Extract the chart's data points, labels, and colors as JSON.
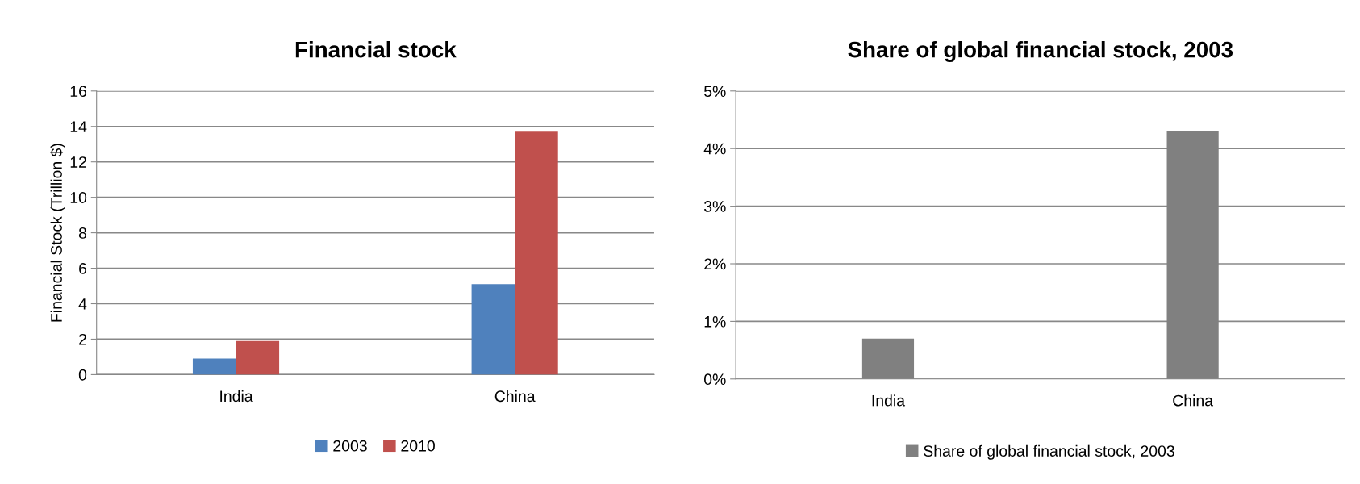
{
  "chart_data": [
    {
      "type": "bar",
      "title": "Financial stock",
      "ylabel": "Financial Stock (Trillion $)",
      "categories": [
        "India",
        "China"
      ],
      "series": [
        {
          "name": "2003",
          "color": "#4f81bd",
          "values": [
            0.9,
            5.1
          ]
        },
        {
          "name": "2010",
          "color": "#c0504d",
          "values": [
            1.9,
            13.7
          ]
        }
      ],
      "ylim": [
        0,
        16
      ],
      "yticks": [
        0,
        2,
        4,
        6,
        8,
        10,
        12,
        14,
        16
      ],
      "grid": "y",
      "legend": "bottom"
    },
    {
      "type": "bar",
      "title": "Share of global financial stock, 2003",
      "categories": [
        "India",
        "China"
      ],
      "series": [
        {
          "name": "Share of global financial stock, 2003",
          "color": "#808080",
          "values": [
            0.7,
            4.3
          ]
        }
      ],
      "ylim": [
        0,
        5
      ],
      "yticks": [
        {
          "value": 0,
          "label": "0%"
        },
        {
          "value": 1,
          "label": "1%"
        },
        {
          "value": 2,
          "label": "2%"
        },
        {
          "value": 3,
          "label": "3%"
        },
        {
          "value": 4,
          "label": "4%"
        },
        {
          "value": 5,
          "label": "5%"
        }
      ],
      "grid": "y",
      "legend": "bottom"
    }
  ]
}
